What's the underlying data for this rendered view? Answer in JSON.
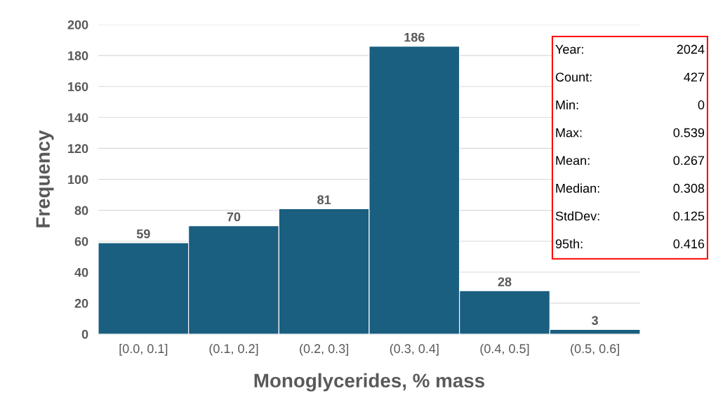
{
  "chart_data": {
    "type": "bar",
    "xlabel": "Monoglycerides, % mass",
    "ylabel": "Frequency",
    "categories": [
      "[0.0, 0.1]",
      "(0.1, 0.2]",
      "(0.2, 0.3]",
      "(0.3, 0.4]",
      "(0.4, 0.5]",
      "(0.5, 0.6]"
    ],
    "values": [
      59,
      70,
      81,
      186,
      28,
      3
    ],
    "color": "#1a5e80",
    "data_labels": true,
    "ylim": [
      0,
      200
    ],
    "yticks": [
      0,
      20,
      40,
      60,
      80,
      100,
      120,
      140,
      160,
      180,
      200
    ],
    "grid": "y",
    "annotations": [
      "Year:",
      "2024",
      "Count:",
      "427",
      "Min:",
      "0",
      "Max:",
      "0.539",
      "Mean:",
      "0.267",
      "Median:",
      "0.308",
      "StdDev:",
      "0.125",
      "95th:",
      "0.416"
    ]
  }
}
